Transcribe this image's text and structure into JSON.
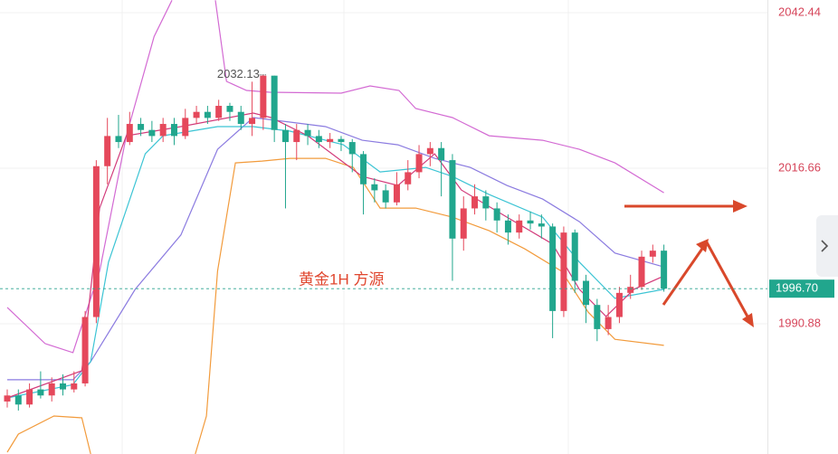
{
  "chart_data": {
    "type": "candlestick",
    "title": "黄金1H  方源",
    "up_color": "#e5485b",
    "down_color": "#21a68d",
    "xlim": [
      -0.65,
      68.3
    ],
    "ylim": [
      1969.3,
      2044.54
    ],
    "yticks": [
      2042.44,
      2016.66,
      1990.88
    ],
    "grid": true,
    "candles": [
      [
        1978,
        1980,
        1977,
        1979
      ],
      [
        1979,
        1980,
        1976.5,
        1977.5
      ],
      [
        1977.5,
        1981,
        1977,
        1980
      ],
      [
        1980,
        1983,
        1978.5,
        1979
      ],
      [
        1979,
        1982,
        1978,
        1981
      ],
      [
        1981,
        1982.5,
        1979,
        1980
      ],
      [
        1980,
        1983,
        1979.5,
        1981
      ],
      [
        1981,
        1993,
        1980.5,
        1992
      ],
      [
        1992,
        2018,
        1991,
        2017
      ],
      [
        2017,
        2025,
        2014,
        2022
      ],
      [
        2022,
        2025.5,
        2020,
        2021
      ],
      [
        2021,
        2026,
        2020.5,
        2024
      ],
      [
        2024,
        2025,
        2022,
        2023
      ],
      [
        2023,
        2024.5,
        2021,
        2022
      ],
      [
        2022,
        2025,
        2021,
        2024
      ],
      [
        2024,
        2025,
        2020.5,
        2022
      ],
      [
        2022,
        2026.5,
        2021.5,
        2025
      ],
      [
        2025,
        2027,
        2024,
        2026
      ],
      [
        2026,
        2027,
        2024,
        2025
      ],
      [
        2025,
        2028,
        2024.5,
        2027
      ],
      [
        2027,
        2027.5,
        2024.5,
        2026
      ],
      [
        2026,
        2027,
        2023,
        2024
      ],
      [
        2024,
        2031,
        2022,
        2025
      ],
      [
        2025,
        2032.13,
        2023,
        2032
      ],
      [
        2032,
        2032,
        2021,
        2023
      ],
      [
        2023,
        2024,
        2010,
        2021
      ],
      [
        2021,
        2024,
        2018,
        2023
      ],
      [
        2023,
        2024,
        2020.5,
        2022
      ],
      [
        2022,
        2023,
        2020,
        2021
      ],
      [
        2021,
        2022.5,
        2020,
        2021.5
      ],
      [
        2021.5,
        2022,
        2019.5,
        2021
      ],
      [
        2021,
        2021.5,
        2016,
        2019
      ],
      [
        2019,
        2019.5,
        2009,
        2014
      ],
      [
        2014,
        2015,
        2011,
        2013
      ],
      [
        2013,
        2014,
        2010,
        2011
      ],
      [
        2011,
        2016,
        2010.5,
        2014
      ],
      [
        2014,
        2018,
        2013,
        2016
      ],
      [
        2016,
        2020.5,
        2015,
        2019
      ],
      [
        2019,
        2021,
        2017,
        2020
      ],
      [
        2020,
        2021,
        2012,
        2018
      ],
      [
        2018,
        2019,
        1998,
        2005
      ],
      [
        2005,
        2012,
        2003,
        2010
      ],
      [
        2010,
        2014,
        2009,
        2012
      ],
      [
        2012,
        2013,
        2008,
        2010
      ],
      [
        2010,
        2011,
        2006,
        2008
      ],
      [
        2008,
        2009,
        2004,
        2006
      ],
      [
        2006,
        2009,
        2005,
        2008
      ],
      [
        2008,
        2009.5,
        2006.5,
        2007.5
      ],
      [
        2007.5,
        2009,
        2005,
        2007
      ],
      [
        2007,
        2007.5,
        1988.5,
        1993
      ],
      [
        1993,
        2007,
        1992,
        2006
      ],
      [
        2006,
        2006.5,
        1996,
        1998
      ],
      [
        1998,
        1999,
        1991,
        1994
      ],
      [
        1994,
        1995,
        1988,
        1990
      ],
      [
        1990,
        1994,
        1989,
        1992
      ],
      [
        1992,
        1997,
        1991,
        1996
      ],
      [
        1996,
        1999,
        1995,
        1997
      ],
      [
        1997,
        2003,
        1996.5,
        2002
      ],
      [
        2002,
        2004,
        2001,
        2003
      ],
      [
        2003,
        2004,
        1996.2,
        1996.7
      ]
    ],
    "high_label": {
      "value": 2032.13,
      "label": "2032.13"
    },
    "last_price": {
      "value": 1996.7,
      "label": "1996.70"
    },
    "series": [
      {
        "color": "#d36ad3",
        "x": [
          0,
          3.4,
          5.9,
          8.3,
          10.7,
          13.2,
          14.8,
          16.7,
          18.7,
          19.7,
          21.5,
          23.6,
          30,
          32.6,
          35.2,
          36.7,
          40,
          43.3,
          48.1,
          51.4,
          54.6,
          59
        ],
        "values": [
          1993.6,
          1987.6,
          1986.1,
          1999.6,
          2022.05,
          2038.5,
          2044.5,
          null,
          2044.5,
          2031.05,
          2029.55,
          2029.25,
          2029.1,
          2030.3,
          2029.55,
          2026.55,
          2025.05,
          2022.05,
          2021.3,
          2019.8,
          2017.55,
          2012.6
        ]
      },
      {
        "color": "#f29b3c",
        "x": [
          0,
          1,
          4.2,
          6.7,
          7.5,
          12,
          16.9,
          17.9,
          18.9,
          20.5,
          22.9,
          25.4,
          28.6,
          31.1,
          33.5,
          36.7,
          40,
          43.3,
          46.5,
          49.8,
          52.2,
          54.6,
          59
        ],
        "values": [
          1969.6,
          1972.6,
          1975.6,
          1975.3,
          1969.3,
          null,
          1969.3,
          1975.6,
          1999.6,
          2017.55,
          2017.85,
          2018.3,
          2018.3,
          2016.8,
          2010.05,
          2010.05,
          2008.55,
          2006.3,
          2003.3,
          1999.6,
          1992.8,
          1988.3,
          1987.3
        ]
      },
      {
        "color": "#8b7be0",
        "x": [
          0,
          5.9,
          7.5,
          11.5,
          15.6,
          18.9,
          22.1,
          25.4,
          28.6,
          31.9,
          35.1,
          38.4,
          41.6,
          44.9,
          48.1,
          51.4,
          54.6,
          59
        ],
        "values": [
          1981.6,
          1981.6,
          1984.6,
          1996.6,
          2005.6,
          2019.8,
          2025.05,
          2024.3,
          2023.55,
          2021.3,
          2020.55,
          2018.3,
          2016.8,
          2013.8,
          2011.55,
          2007.8,
          2002.6,
          2000.3
        ]
      },
      {
        "color": "#3cc4d4",
        "x": [
          0,
          5.9,
          7.5,
          9.1,
          12.4,
          14,
          18.9,
          22.1,
          25.4,
          30.2,
          33.5,
          37.6,
          40,
          43.3,
          48.1,
          51.4,
          54.6,
          59
        ],
        "values": [
          1978.6,
          1980.8,
          1984.6,
          2001.1,
          2019.05,
          2022.05,
          2023.55,
          2023.55,
          2022.8,
          2020.55,
          2016.05,
          2016.8,
          2015.3,
          2012.3,
          2008.55,
          2001.1,
          1995.1,
          1996.6
        ]
      },
      {
        "color": "#d23a7a",
        "x": [
          0,
          6.7,
          8.3,
          10.7,
          15.6,
          22.1,
          23.7,
          27,
          31.9,
          35.1,
          38.4,
          40.8,
          44.9,
          49,
          51.4,
          53.8,
          56.3,
          59
        ],
        "values": [
          1978.6,
          1983.1,
          2010.05,
          2022.05,
          2023.55,
          2025.8,
          2025.05,
          2022.05,
          2015.3,
          2013.8,
          2019.05,
          2013.05,
          2008.55,
          2004.1,
          1996.6,
          1992.1,
          1996.6,
          1998.8
        ]
      }
    ]
  }
}
